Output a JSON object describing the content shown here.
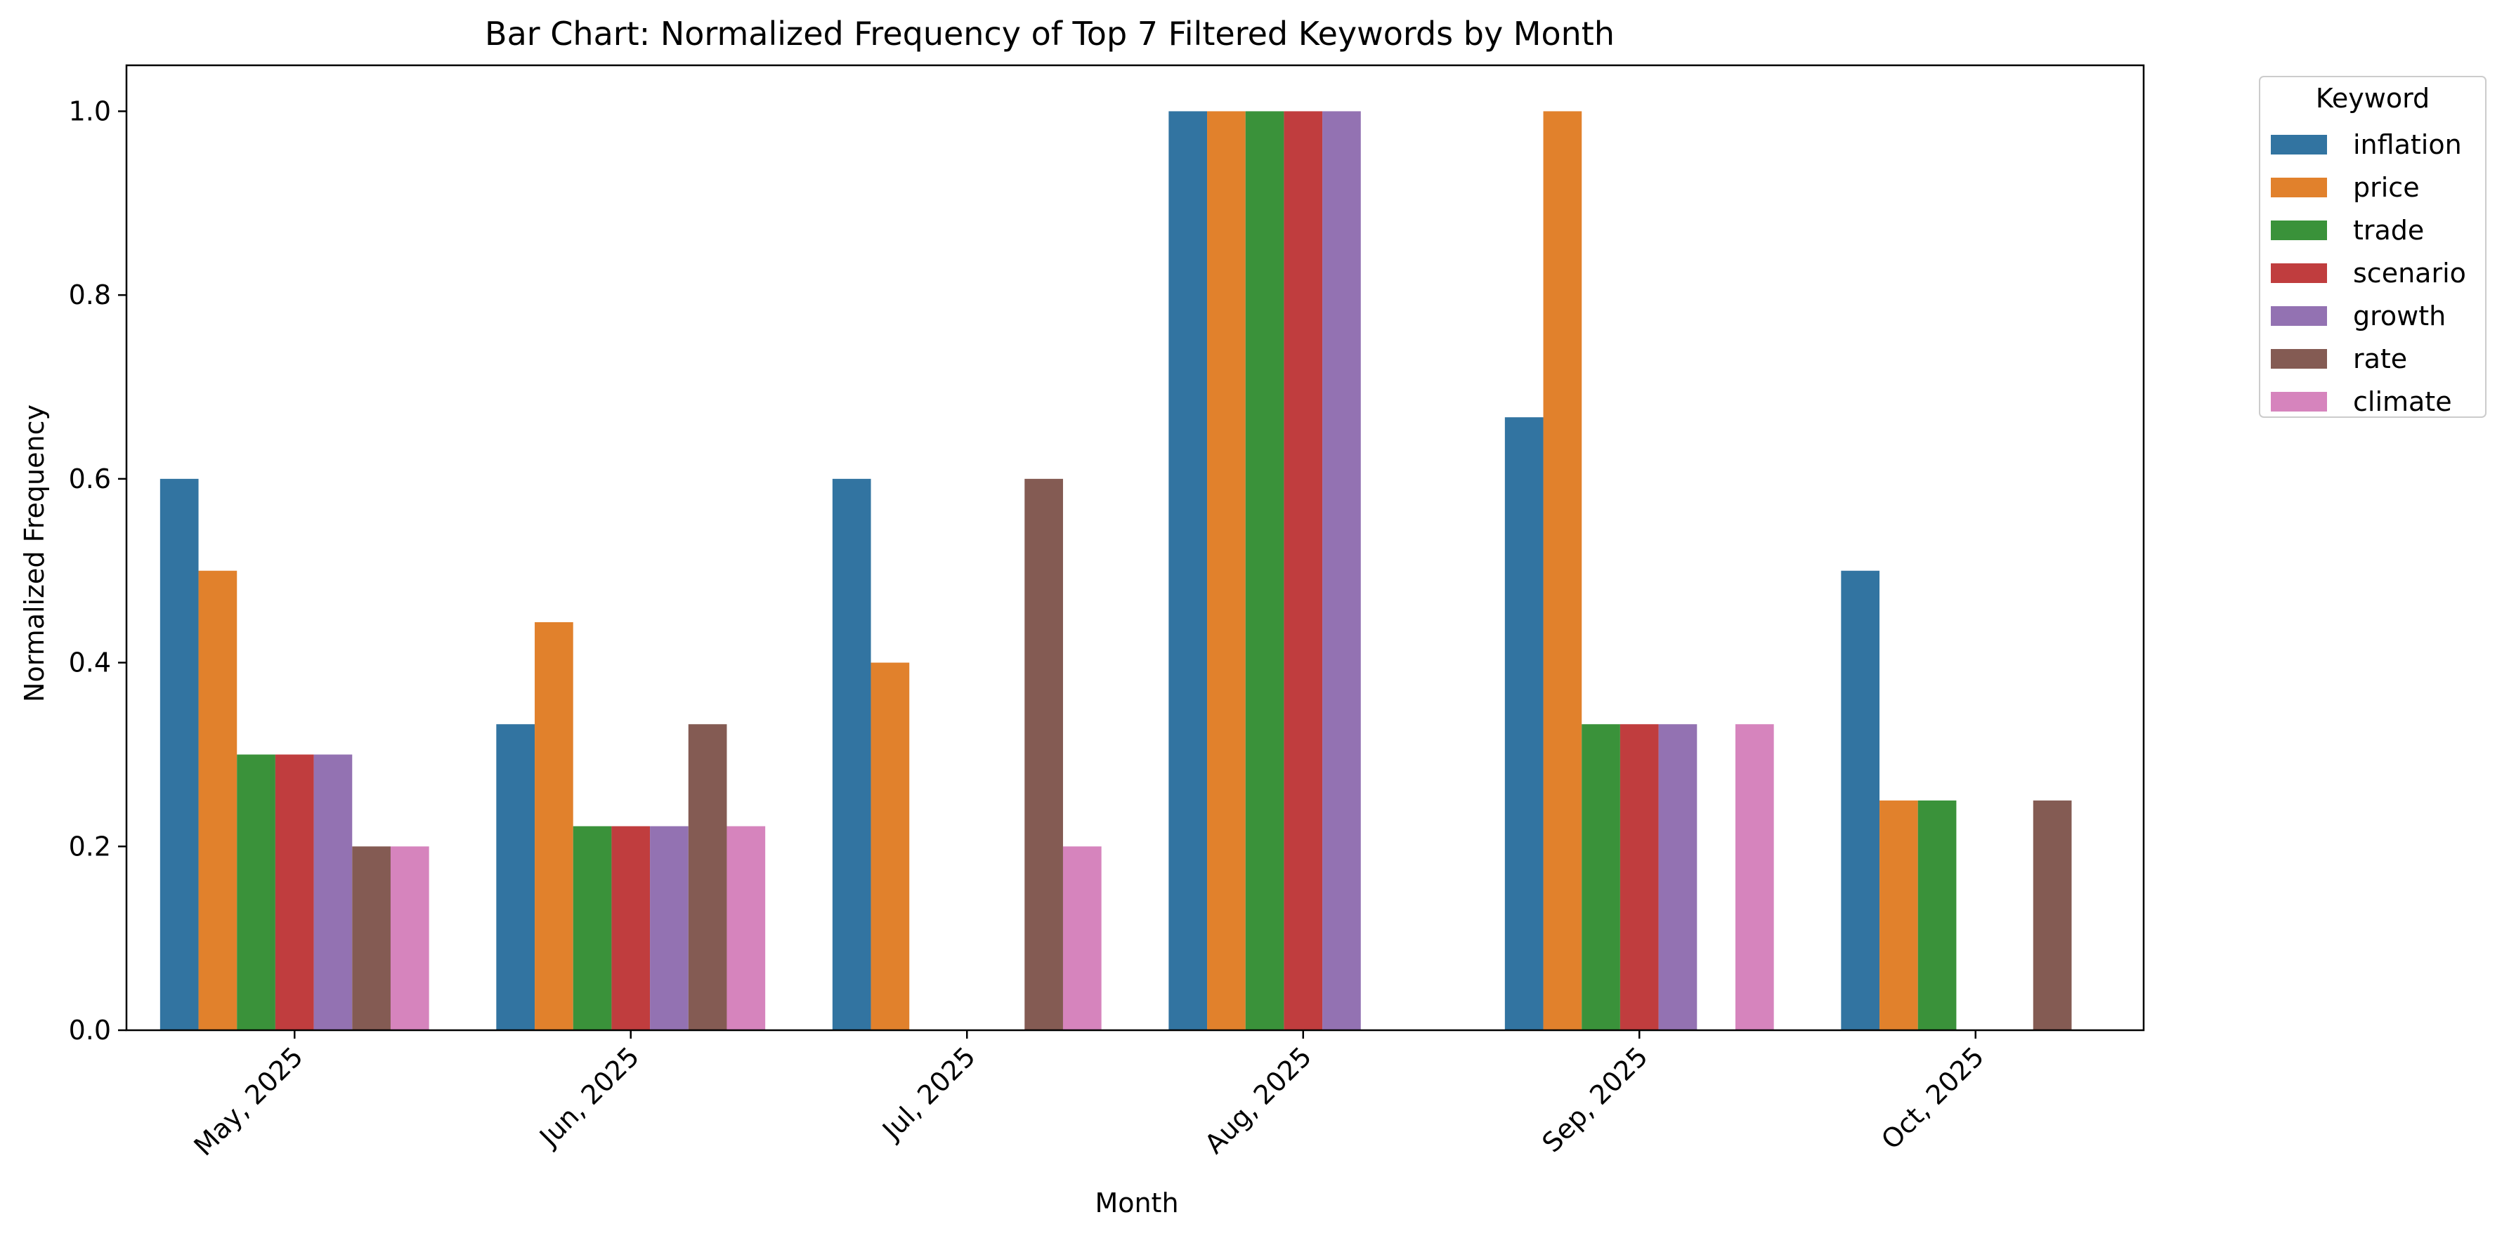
{
  "chart_data": {
    "type": "bar",
    "title": "Bar Chart: Normalized Frequency of Top 7 Filtered Keywords by Month",
    "xlabel": "Month",
    "ylabel": "Normalized Frequency",
    "ylim": [
      0,
      1.05
    ],
    "yticks": [
      "0.0",
      "0.2",
      "0.4",
      "0.6",
      "0.8",
      "1.0"
    ],
    "grid": false,
    "legend": {
      "title": "Keyword",
      "placement": "outside-top-right"
    },
    "categories": [
      "May, 2025",
      "Jun, 2025",
      "Jul, 2025",
      "Aug, 2025",
      "Sep, 2025",
      "Oct, 2025"
    ],
    "series": [
      {
        "name": "inflation",
        "color": "#3274a1",
        "values": [
          0.6,
          0.333,
          0.6,
          1.0,
          0.667,
          0.5
        ]
      },
      {
        "name": "price",
        "color": "#e1812c",
        "values": [
          0.5,
          0.444,
          0.4,
          1.0,
          1.0,
          0.25
        ]
      },
      {
        "name": "trade",
        "color": "#3a923a",
        "values": [
          0.3,
          0.222,
          0,
          1.0,
          0.333,
          0.25
        ]
      },
      {
        "name": "scenario",
        "color": "#c03d3e",
        "values": [
          0.3,
          0.222,
          0,
          1.0,
          0.333,
          0
        ]
      },
      {
        "name": "growth",
        "color": "#9372b2",
        "values": [
          0.3,
          0.222,
          0,
          1.0,
          0.333,
          0
        ]
      },
      {
        "name": "rate",
        "color": "#845b53",
        "values": [
          0.2,
          0.333,
          0.6,
          0,
          0,
          0.25
        ]
      },
      {
        "name": "climate",
        "color": "#d684bd",
        "values": [
          0.2,
          0.222,
          0.2,
          0,
          0.333,
          0
        ]
      }
    ]
  }
}
